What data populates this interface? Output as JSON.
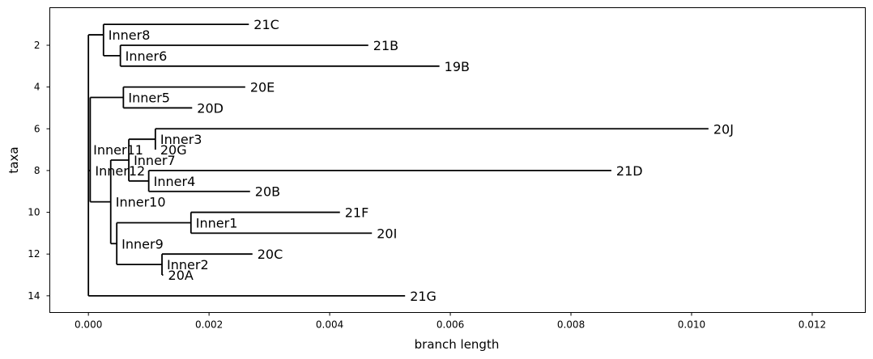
{
  "chart_data": {
    "type": "tree",
    "xlabel": "branch length",
    "ylabel": "taxa",
    "xlim": [
      -0.00064,
      0.01288
    ],
    "ylim": [
      14.8,
      0.2
    ],
    "x_ticks": [
      {
        "value": 0.0,
        "label": "0.000"
      },
      {
        "value": 0.002,
        "label": "0.002"
      },
      {
        "value": 0.004,
        "label": "0.004"
      },
      {
        "value": 0.006,
        "label": "0.006"
      },
      {
        "value": 0.008,
        "label": "0.008"
      },
      {
        "value": 0.01,
        "label": "0.010"
      },
      {
        "value": 0.012,
        "label": "0.012"
      }
    ],
    "y_ticks": [
      {
        "value": 2,
        "label": "2"
      },
      {
        "value": 4,
        "label": "4"
      },
      {
        "value": 6,
        "label": "6"
      },
      {
        "value": 8,
        "label": "8"
      },
      {
        "value": 10,
        "label": "10"
      },
      {
        "value": 12,
        "label": "12"
      },
      {
        "value": 14,
        "label": "14"
      }
    ],
    "nodes": [
      {
        "id": "root",
        "label": "",
        "x": 0.0,
        "y": 7.0,
        "parent": null
      },
      {
        "id": "Inner8",
        "label": "Inner8",
        "x": 0.00025,
        "y": 1.5,
        "parent": "Inner11"
      },
      {
        "id": "Inner11",
        "label": "Inner11",
        "x": 0.0,
        "y": 7.0,
        "parent": null
      },
      {
        "id": "21C",
        "label": "21C",
        "x": 0.00266,
        "y": 1.0,
        "parent": "Inner8"
      },
      {
        "id": "Inner6",
        "label": "Inner6",
        "x": 0.00053,
        "y": 2.5,
        "parent": "Inner8"
      },
      {
        "id": "21B",
        "label": "21B",
        "x": 0.00464,
        "y": 2.0,
        "parent": "Inner6"
      },
      {
        "id": "19B",
        "label": "19B",
        "x": 0.00582,
        "y": 3.0,
        "parent": "Inner6"
      },
      {
        "id": "Inner12",
        "label": "Inner12",
        "x": 3e-05,
        "y": 8.0,
        "parent": "Inner11"
      },
      {
        "id": "Inner5",
        "label": "Inner5",
        "x": 0.00058,
        "y": 4.5,
        "parent": "Inner12"
      },
      {
        "id": "20E",
        "label": "20E",
        "x": 0.0026,
        "y": 4.0,
        "parent": "Inner5"
      },
      {
        "id": "20D",
        "label": "20D",
        "x": 0.00172,
        "y": 5.0,
        "parent": "Inner5"
      },
      {
        "id": "Inner10",
        "label": "Inner10",
        "x": 0.00037,
        "y": 9.5,
        "parent": "Inner12"
      },
      {
        "id": "Inner7",
        "label": "Inner7",
        "x": 0.00067,
        "y": 7.5,
        "parent": "Inner10"
      },
      {
        "id": "Inner3",
        "label": "Inner3",
        "x": 0.00111,
        "y": 6.5,
        "parent": "Inner7"
      },
      {
        "id": "20J",
        "label": "20J",
        "x": 0.01028,
        "y": 6.0,
        "parent": "Inner3"
      },
      {
        "id": "20G",
        "label": "20G",
        "x": 0.00111,
        "y": 7.0,
        "parent": "Inner3"
      },
      {
        "id": "Inner4",
        "label": "Inner4",
        "x": 0.001,
        "y": 8.5,
        "parent": "Inner7"
      },
      {
        "id": "21D",
        "label": "21D",
        "x": 0.00867,
        "y": 8.0,
        "parent": "Inner4"
      },
      {
        "id": "20B",
        "label": "20B",
        "x": 0.00268,
        "y": 9.0,
        "parent": "Inner4"
      },
      {
        "id": "Inner9",
        "label": "Inner9",
        "x": 0.00047,
        "y": 11.5,
        "parent": "Inner10"
      },
      {
        "id": "Inner1",
        "label": "Inner1",
        "x": 0.0017,
        "y": 10.5,
        "parent": "Inner9"
      },
      {
        "id": "21F",
        "label": "21F",
        "x": 0.00417,
        "y": 10.0,
        "parent": "Inner1"
      },
      {
        "id": "20I",
        "label": "20I",
        "x": 0.0047,
        "y": 11.0,
        "parent": "Inner1"
      },
      {
        "id": "Inner2",
        "label": "Inner2",
        "x": 0.00122,
        "y": 12.5,
        "parent": "Inner9"
      },
      {
        "id": "20C",
        "label": "20C",
        "x": 0.00272,
        "y": 12.0,
        "parent": "Inner2"
      },
      {
        "id": "20A",
        "label": "20A",
        "x": 0.00124,
        "y": 13.0,
        "parent": "Inner2"
      },
      {
        "id": "21G",
        "label": "21G",
        "x": 0.00525,
        "y": 14.0,
        "parent": "Inner11"
      }
    ]
  }
}
